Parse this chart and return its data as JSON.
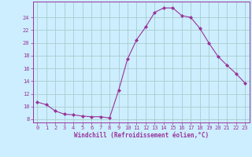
{
  "x": [
    0,
    1,
    2,
    3,
    4,
    5,
    6,
    7,
    8,
    9,
    10,
    11,
    12,
    13,
    14,
    15,
    16,
    17,
    18,
    19,
    20,
    21,
    22,
    23
  ],
  "y": [
    10.7,
    10.3,
    9.3,
    8.8,
    8.7,
    8.5,
    8.4,
    8.4,
    8.2,
    12.5,
    17.5,
    20.5,
    22.5,
    24.8,
    25.5,
    25.5,
    24.3,
    24.0,
    22.3,
    20.0,
    17.9,
    16.5,
    15.2,
    13.7
  ],
  "line_color": "#993399",
  "marker": "D",
  "marker_size": 2.0,
  "bg_color": "#cceeff",
  "grid_color": "#aacccc",
  "xlabel": "Windchill (Refroidissement éolien,°C)",
  "xlabel_color": "#993399",
  "tick_color": "#993399",
  "ylim": [
    7.5,
    26.5
  ],
  "xlim": [
    -0.5,
    23.5
  ],
  "yticks": [
    8,
    10,
    12,
    14,
    16,
    18,
    20,
    22,
    24
  ],
  "xticks": [
    0,
    1,
    2,
    3,
    4,
    5,
    6,
    7,
    8,
    9,
    10,
    11,
    12,
    13,
    14,
    15,
    16,
    17,
    18,
    19,
    20,
    21,
    22,
    23
  ],
  "spine_color": "#993399",
  "tick_fontsize": 5.0,
  "xlabel_fontsize": 5.5
}
